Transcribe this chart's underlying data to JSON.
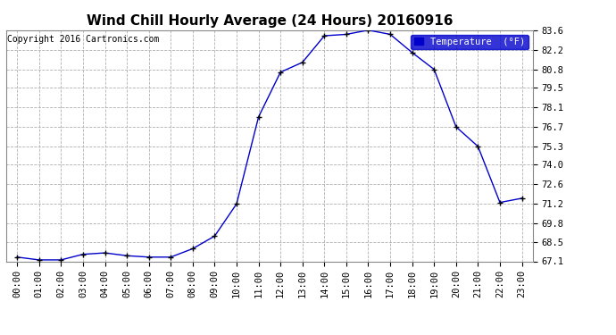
{
  "title": "Wind Chill Hourly Average (24 Hours) 20160916",
  "copyright": "Copyright 2016 Cartronics.com",
  "legend_label": "Temperature  (°F)",
  "x_labels": [
    "00:00",
    "01:00",
    "02:00",
    "03:00",
    "04:00",
    "05:00",
    "06:00",
    "07:00",
    "08:00",
    "09:00",
    "10:00",
    "11:00",
    "12:00",
    "13:00",
    "14:00",
    "15:00",
    "16:00",
    "17:00",
    "18:00",
    "19:00",
    "20:00",
    "21:00",
    "22:00",
    "23:00"
  ],
  "y_values": [
    67.4,
    67.2,
    67.2,
    67.6,
    67.7,
    67.5,
    67.4,
    67.4,
    68.0,
    68.9,
    71.2,
    77.4,
    80.6,
    81.3,
    83.2,
    83.3,
    83.6,
    83.3,
    82.0,
    80.8,
    76.7,
    75.3,
    71.3,
    71.6
  ],
  "ylim_min": 67.1,
  "ylim_max": 83.6,
  "yticks": [
    67.1,
    68.5,
    69.8,
    71.2,
    72.6,
    74.0,
    75.3,
    76.7,
    78.1,
    79.5,
    80.8,
    82.2,
    83.6
  ],
  "line_color": "#0000cc",
  "marker_color": "#000000",
  "bg_color": "#ffffff",
  "plot_bg_color": "#ffffff",
  "grid_color": "#b0b0b0",
  "title_fontsize": 11,
  "copyright_fontsize": 7,
  "axis_fontsize": 7.5,
  "legend_bg_color": "#0000cc",
  "legend_text_color": "#ffffff"
}
